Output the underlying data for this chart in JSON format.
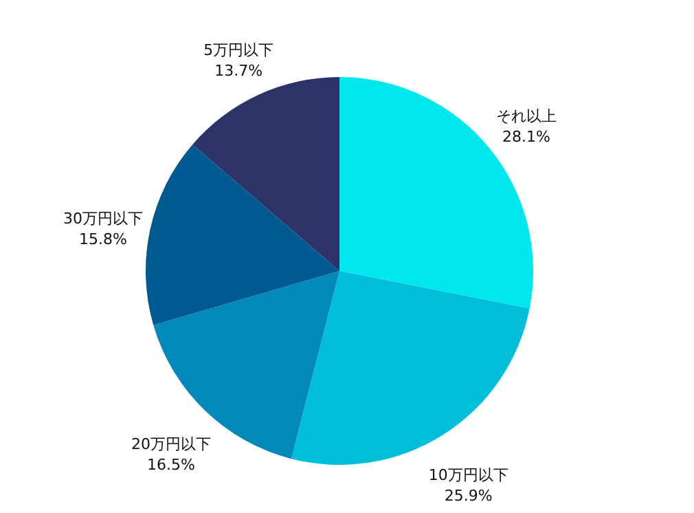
{
  "chart_data": {
    "type": "pie",
    "categories": [
      "それ以上",
      "10万円以下",
      "20万円以下",
      "30万円以下",
      "5万円以下"
    ],
    "values": [
      28.1,
      25.9,
      16.5,
      15.8,
      13.7
    ],
    "value_labels": [
      "28.1%",
      "25.9%",
      "16.5%",
      "15.8%",
      "13.7%"
    ],
    "colors": [
      "#00e8ed",
      "#00bdd9",
      "#0089b9",
      "#005a92",
      "#2d3369"
    ]
  }
}
